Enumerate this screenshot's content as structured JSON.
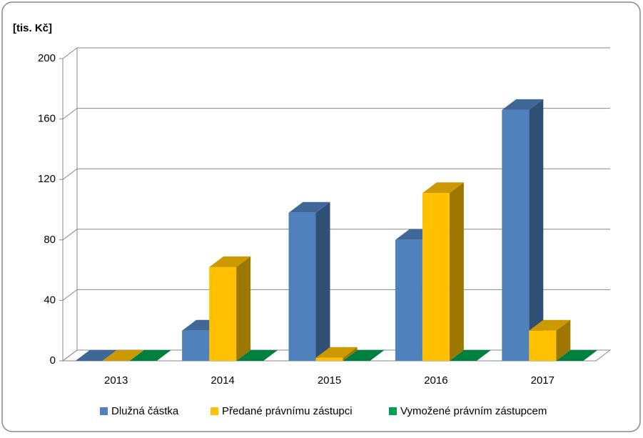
{
  "chart_data": {
    "type": "bar3d",
    "y_axis_label": "[tis. Kč]",
    "categories": [
      "2013",
      "2014",
      "2015",
      "2016",
      "2017"
    ],
    "series": [
      {
        "name": "Dlužná částka",
        "color": "#4f81bd",
        "values": [
          0,
          20,
          98,
          80,
          166
        ]
      },
      {
        "name": "Předané právnímu zástupci",
        "color": "#ffc000",
        "values": [
          0,
          62,
          2,
          111,
          20
        ]
      },
      {
        "name": "Vymožené právním zástupcem",
        "color": "#00a050",
        "values": [
          0,
          0,
          0,
          0,
          0
        ]
      }
    ],
    "ylim": [
      0,
      200
    ],
    "yticks": [
      0,
      40,
      80,
      120,
      160,
      200
    ],
    "grid": true,
    "legend": "bottom"
  }
}
